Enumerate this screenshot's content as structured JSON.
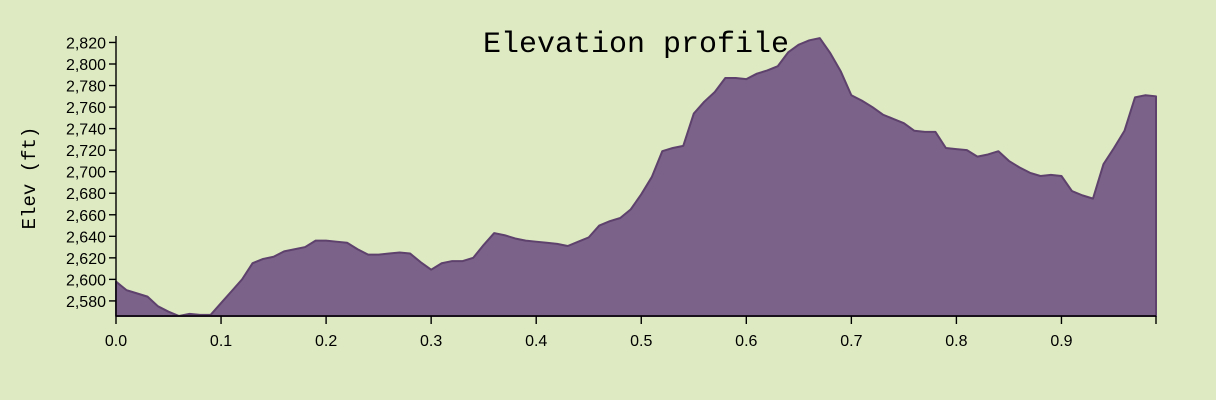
{
  "chart_data": {
    "type": "area",
    "title": "Elevation profile",
    "xlabel": "",
    "ylabel": "Elev (ft)",
    "xlim": [
      0,
      0.99
    ],
    "ylim": [
      2566,
      2826
    ],
    "x_ticks": [
      "0.0",
      "0.1",
      "0.2",
      "0.3",
      "0.4",
      "0.5",
      "0.6",
      "0.7",
      "0.8",
      "0.9"
    ],
    "y_ticks": [
      "2,580",
      "2,600",
      "2,620",
      "2,640",
      "2,660",
      "2,680",
      "2,700",
      "2,720",
      "2,740",
      "2,760",
      "2,780",
      "2,800",
      "2,820"
    ],
    "colors": {
      "background": "#deebc2",
      "fill": "#7a6288",
      "stroke": "#5e426d"
    },
    "series": [
      {
        "x": [
          0.0,
          0.005,
          0.01,
          0.02,
          0.03,
          0.04,
          0.05,
          0.06,
          0.07,
          0.08,
          0.09,
          0.1,
          0.11,
          0.12,
          0.13,
          0.14,
          0.15,
          0.16,
          0.17,
          0.18,
          0.19,
          0.2,
          0.21,
          0.22,
          0.23,
          0.24,
          0.25,
          0.26,
          0.27,
          0.28,
          0.29,
          0.3,
          0.31,
          0.32,
          0.33,
          0.34,
          0.35,
          0.36,
          0.37,
          0.38,
          0.39,
          0.4,
          0.41,
          0.42,
          0.43,
          0.44,
          0.45,
          0.46,
          0.47,
          0.48,
          0.49,
          0.5,
          0.51,
          0.52,
          0.53,
          0.54,
          0.55,
          0.56,
          0.57,
          0.58,
          0.59,
          0.6,
          0.61,
          0.62,
          0.63,
          0.64,
          0.65,
          0.66,
          0.67,
          0.68,
          0.69,
          0.7,
          0.71,
          0.72,
          0.73,
          0.74,
          0.75,
          0.76,
          0.77,
          0.78,
          0.79,
          0.8,
          0.81,
          0.82,
          0.83,
          0.84,
          0.85,
          0.86,
          0.87,
          0.88,
          0.89,
          0.9,
          0.91,
          0.92,
          0.93,
          0.94,
          0.95,
          0.96,
          0.97,
          0.98,
          0.99
        ],
        "y": [
          2598,
          2594,
          2590,
          2587,
          2584,
          2575,
          2570,
          2566,
          2568,
          2567,
          2567,
          2578,
          2589,
          2600,
          2615,
          2619,
          2621,
          2626,
          2628,
          2630,
          2636,
          2636,
          2635,
          2634,
          2628,
          2623,
          2623,
          2624,
          2625,
          2624,
          2616,
          2609,
          2615,
          2617,
          2617,
          2620,
          2632,
          2643,
          2641,
          2638,
          2636,
          2635,
          2634,
          2633,
          2631,
          2635,
          2639,
          2650,
          2654,
          2657,
          2665,
          2679,
          2695,
          2719,
          2722,
          2724,
          2754,
          2765,
          2774,
          2787,
          2787,
          2786,
          2791,
          2794,
          2798,
          2811,
          2818,
          2822,
          2824,
          2810,
          2793,
          2771,
          2766,
          2760,
          2753,
          2749,
          2745,
          2738,
          2737,
          2737,
          2722,
          2721,
          2720,
          2714,
          2716,
          2719,
          2710,
          2704,
          2699,
          2696,
          2697,
          2696,
          2682,
          2678,
          2675,
          2707,
          2722,
          2738,
          2769,
          2771,
          2770
        ]
      }
    ]
  }
}
